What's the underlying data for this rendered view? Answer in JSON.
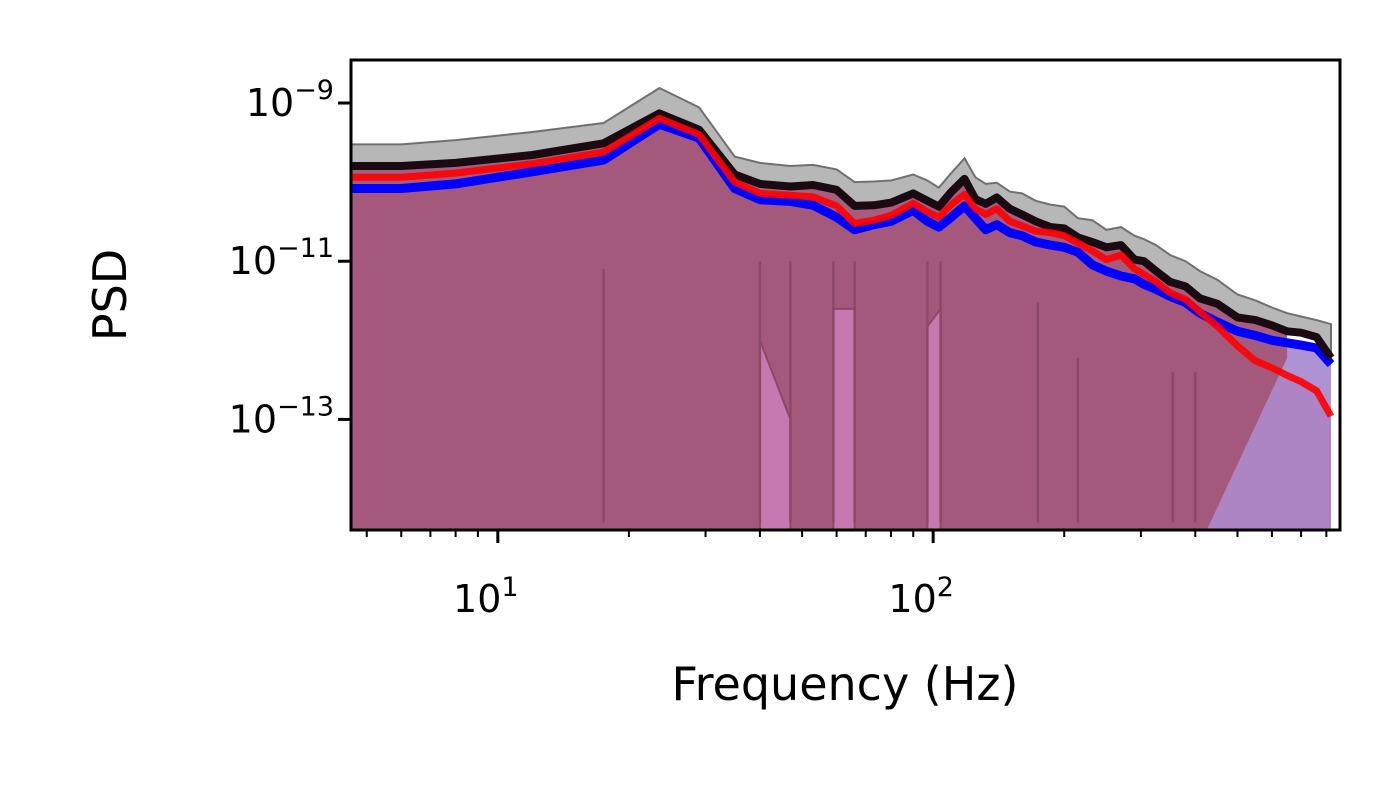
{
  "chart_data": {
    "type": "area",
    "title": "",
    "xlabel": "Frequency (Hz)",
    "ylabel": "PSD",
    "x_scale": "log",
    "y_scale": "log",
    "xlim": [
      4.6,
      860
    ],
    "ylim": [
      4e-15,
      3.5e-09
    ],
    "x_ticks": [
      {
        "value": 10,
        "base": "10",
        "exp": "1"
      },
      {
        "value": 100,
        "base": "10",
        "exp": "2"
      }
    ],
    "y_ticks": [
      {
        "value": 1e-09,
        "base": "10",
        "exp": "−9"
      },
      {
        "value": 1e-11,
        "base": "10",
        "exp": "−11"
      },
      {
        "value": 1e-13,
        "base": "10",
        "exp": "−13"
      }
    ],
    "grid": false,
    "x": [
      4.6,
      6,
      8,
      12,
      17.5,
      23.5,
      29,
      35,
      40,
      47,
      53,
      60,
      66,
      73,
      80,
      90,
      97,
      103,
      110,
      118,
      125,
      132,
      140,
      150,
      160,
      172,
      186,
      200,
      215,
      232,
      250,
      270,
      290,
      305,
      325,
      350,
      380,
      410,
      450,
      500,
      550,
      600,
      650,
      700,
      760,
      820
    ],
    "series": [
      {
        "color": "#000000",
        "values": [
          1.6e-10,
          1.6e-10,
          1.75e-10,
          2.2e-10,
          3.1e-10,
          7.4e-10,
          4.6e-10,
          1.25e-10,
          9.5e-11,
          8.8e-11,
          9.2e-11,
          8e-11,
          5e-11,
          5.1e-11,
          5.5e-11,
          7.2e-11,
          5.8e-11,
          4.9e-11,
          7.5e-11,
          1.1e-10,
          6.1e-11,
          5.3e-11,
          6.4e-11,
          4.6e-11,
          3.9e-11,
          3.2e-11,
          2.7e-11,
          2.6e-11,
          2e-11,
          1.75e-11,
          1.5e-11,
          1.6e-11,
          1.05e-11,
          1e-11,
          7.5e-12,
          5.5e-12,
          4.8e-12,
          3.4e-12,
          2.9e-12,
          1.95e-12,
          1.8e-12,
          1.55e-12,
          1.3e-12,
          1.25e-12,
          1.1e-12,
          6e-13
        ],
        "upper": [
          3e-10,
          3e-10,
          3.4e-10,
          4.3e-10,
          5.6e-10,
          1.55e-09,
          8.8e-10,
          2.1e-10,
          1.75e-10,
          1.6e-10,
          1.65e-10,
          1.45e-10,
          1e-10,
          1.02e-10,
          1.05e-10,
          1.25e-10,
          1.05e-10,
          8.5e-11,
          1.3e-10,
          2e-10,
          1.15e-10,
          9.5e-11,
          9.8e-11,
          7.6e-11,
          7.2e-11,
          5.8e-11,
          5.2e-11,
          4.9e-11,
          3.5e-11,
          3.3e-11,
          2.5e-11,
          2.7e-11,
          2.1e-11,
          1.9e-11,
          1.6e-11,
          1.2e-11,
          1e-11,
          7.5e-12,
          5.8e-12,
          3.8e-12,
          3.2e-12,
          2.6e-12,
          2.2e-12,
          2e-12,
          1.8e-12,
          1.6e-12
        ]
      },
      {
        "color": "#0000ff",
        "values": [
          8.3e-11,
          8.3e-11,
          9.5e-11,
          1.35e-10,
          1.9e-10,
          5.4e-10,
          3.6e-10,
          8.3e-11,
          6e-11,
          5.7e-11,
          5.1e-11,
          3.6e-11,
          2.5e-11,
          2.9e-11,
          3.2e-11,
          4.4e-11,
          3.2e-11,
          2.7e-11,
          3.6e-11,
          5e-11,
          3.5e-11,
          2.5e-11,
          2.9e-11,
          2.3e-11,
          2.1e-11,
          1.75e-11,
          1.6e-11,
          1.5e-11,
          1.3e-11,
          9e-12,
          7.5e-12,
          6.5e-12,
          6e-12,
          5.1e-12,
          4.4e-12,
          3.6e-12,
          3e-12,
          2.2e-12,
          1.7e-12,
          1.3e-12,
          1.15e-12,
          1e-12,
          9.3e-13,
          8.7e-13,
          8e-13,
          5e-13
        ]
      },
      {
        "color": "#ff0000",
        "values": [
          1.15e-10,
          1.15e-10,
          1.3e-10,
          1.7e-10,
          2.4e-10,
          6.4e-10,
          4e-10,
          1e-10,
          7.2e-11,
          6.8e-11,
          6.5e-11,
          5e-11,
          3e-11,
          3.3e-11,
          3.8e-11,
          5.4e-11,
          4.2e-11,
          3.6e-11,
          5.2e-11,
          7e-11,
          4.6e-11,
          3.9e-11,
          4.6e-11,
          3.2e-11,
          2.8e-11,
          2.4e-11,
          2.3e-11,
          2.1e-11,
          1.7e-11,
          1.35e-11,
          1.05e-11,
          1.2e-11,
          8e-12,
          6.8e-12,
          5.5e-12,
          4e-12,
          3.3e-12,
          2.3e-12,
          1.5e-12,
          8.5e-13,
          5.5e-13,
          4.5e-13,
          3.6e-13,
          3e-13,
          2.3e-13,
          1.1e-13
        ]
      }
    ],
    "lower_dips": [
      {
        "x": 17.5,
        "value": 5e-15
      },
      {
        "x": 40,
        "value": 5e-15
      },
      {
        "x": 47,
        "value": 5e-15
      },
      {
        "x": 59,
        "value": 5e-15
      },
      {
        "x": 66,
        "value": 5e-15
      },
      {
        "x": 97,
        "value": 5e-15
      },
      {
        "x": 104,
        "value": 5e-15
      },
      {
        "x": 174,
        "value": 5e-15
      },
      {
        "x": 215,
        "value": 5e-15
      },
      {
        "x": 355,
        "value": 5e-15
      },
      {
        "x": 400,
        "value": 5e-15
      }
    ],
    "fill_colors": {
      "main": "#a3587a",
      "light": "#c878b0",
      "pink": "#ffb4b4",
      "purple": "#9878c8"
    }
  }
}
